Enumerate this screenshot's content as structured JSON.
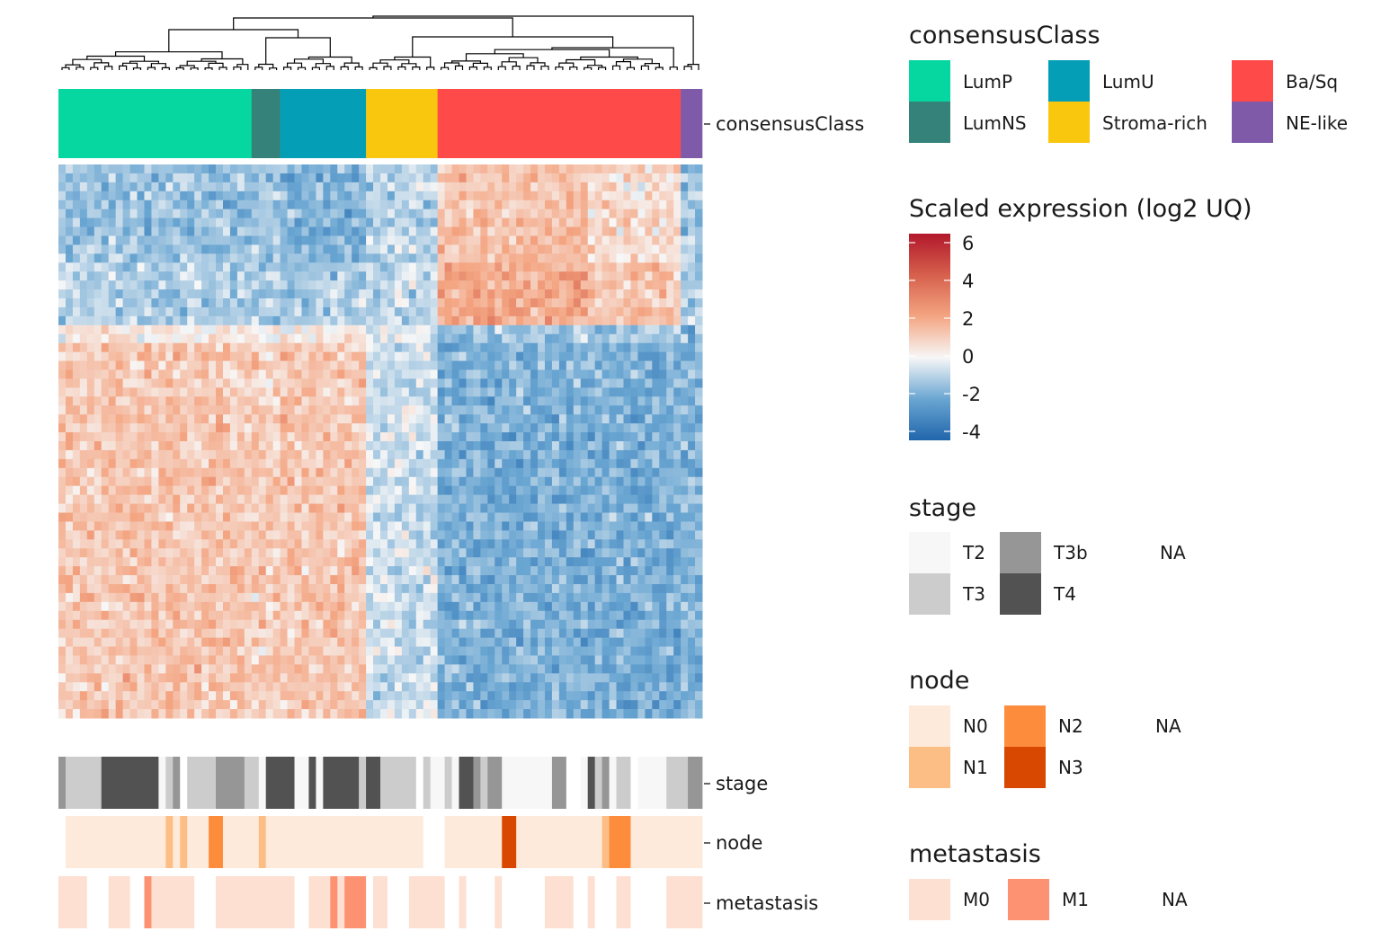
{
  "chart_data": {
    "type": "heatmap",
    "title": "",
    "row_count": 62,
    "column_count": 90,
    "value_range": [
      -4,
      6
    ],
    "color_scale": {
      "title": "Scaled expression (log2 UQ)",
      "ticks": [
        "6",
        "4",
        "2",
        "0",
        "-2",
        "-4"
      ],
      "stops": [
        {
          "value": 6,
          "color": "#b2182b"
        },
        {
          "value": 4,
          "color": "#d6604d"
        },
        {
          "value": 2,
          "color": "#f4a582"
        },
        {
          "value": 0,
          "color": "#f7f7f7"
        },
        {
          "value": -2,
          "color": "#6aa6d2"
        },
        {
          "value": -4,
          "color": "#2166ac"
        }
      ]
    },
    "row_blocks": [
      {
        "rows": 11,
        "pattern": "basal-up"
      },
      {
        "rows": 7,
        "pattern": "basal-up-strong"
      },
      {
        "rows": 2,
        "pattern": "transition"
      },
      {
        "rows": 42,
        "pattern": "luminal-up"
      }
    ],
    "column_annotation": {
      "label": "consensusClass",
      "legend_title": "consensusClass",
      "classes": [
        {
          "name": "LumP",
          "color": "#06d6a0",
          "columns": 27
        },
        {
          "name": "LumNS",
          "color": "#35827a",
          "columns": 4
        },
        {
          "name": "LumU",
          "color": "#049fb7",
          "columns": 12
        },
        {
          "name": "Stroma-rich",
          "color": "#f9c80e",
          "columns": 10
        },
        {
          "name": "Ba/Sq",
          "color": "#ff4a4a",
          "columns": 34
        },
        {
          "name": "NE-like",
          "color": "#7f5aa8",
          "columns": 3
        }
      ],
      "legend_order": [
        "LumP",
        "LumU",
        "Ba/Sq",
        "LumNS",
        "Stroma-rich",
        "NE-like"
      ]
    },
    "bottom_annotations": [
      {
        "label": "stage",
        "legend_title": "stage",
        "levels": [
          {
            "name": "T2",
            "color": "#f7f7f7"
          },
          {
            "name": "T3",
            "color": "#cccccc"
          },
          {
            "name": "T3b",
            "color": "#969696"
          },
          {
            "name": "T4",
            "color": "#525252"
          },
          {
            "name": "NA",
            "color": "#ffffff"
          }
        ],
        "legend_order": [
          "T2",
          "T3b",
          "NA",
          "T3",
          "T4"
        ]
      },
      {
        "label": "node",
        "legend_title": "node",
        "levels": [
          {
            "name": "N0",
            "color": "#feeadb"
          },
          {
            "name": "N1",
            "color": "#fdbe85"
          },
          {
            "name": "N2",
            "color": "#fd8d3c"
          },
          {
            "name": "N3",
            "color": "#d94801"
          },
          {
            "name": "NA",
            "color": "#ffffff"
          }
        ],
        "legend_order": [
          "N0",
          "N2",
          "NA",
          "N1",
          "N3"
        ]
      },
      {
        "label": "metastasis",
        "legend_title": "metastasis",
        "levels": [
          {
            "name": "M0",
            "color": "#fde0d2"
          },
          {
            "name": "M1",
            "color": "#fc9272"
          },
          {
            "name": "NA",
            "color": "#ffffff"
          }
        ],
        "legend_order": [
          "M0",
          "M1",
          "NA"
        ]
      }
    ],
    "dendrogram": "hierarchical clustering of columns",
    "legend_placement": "right"
  }
}
